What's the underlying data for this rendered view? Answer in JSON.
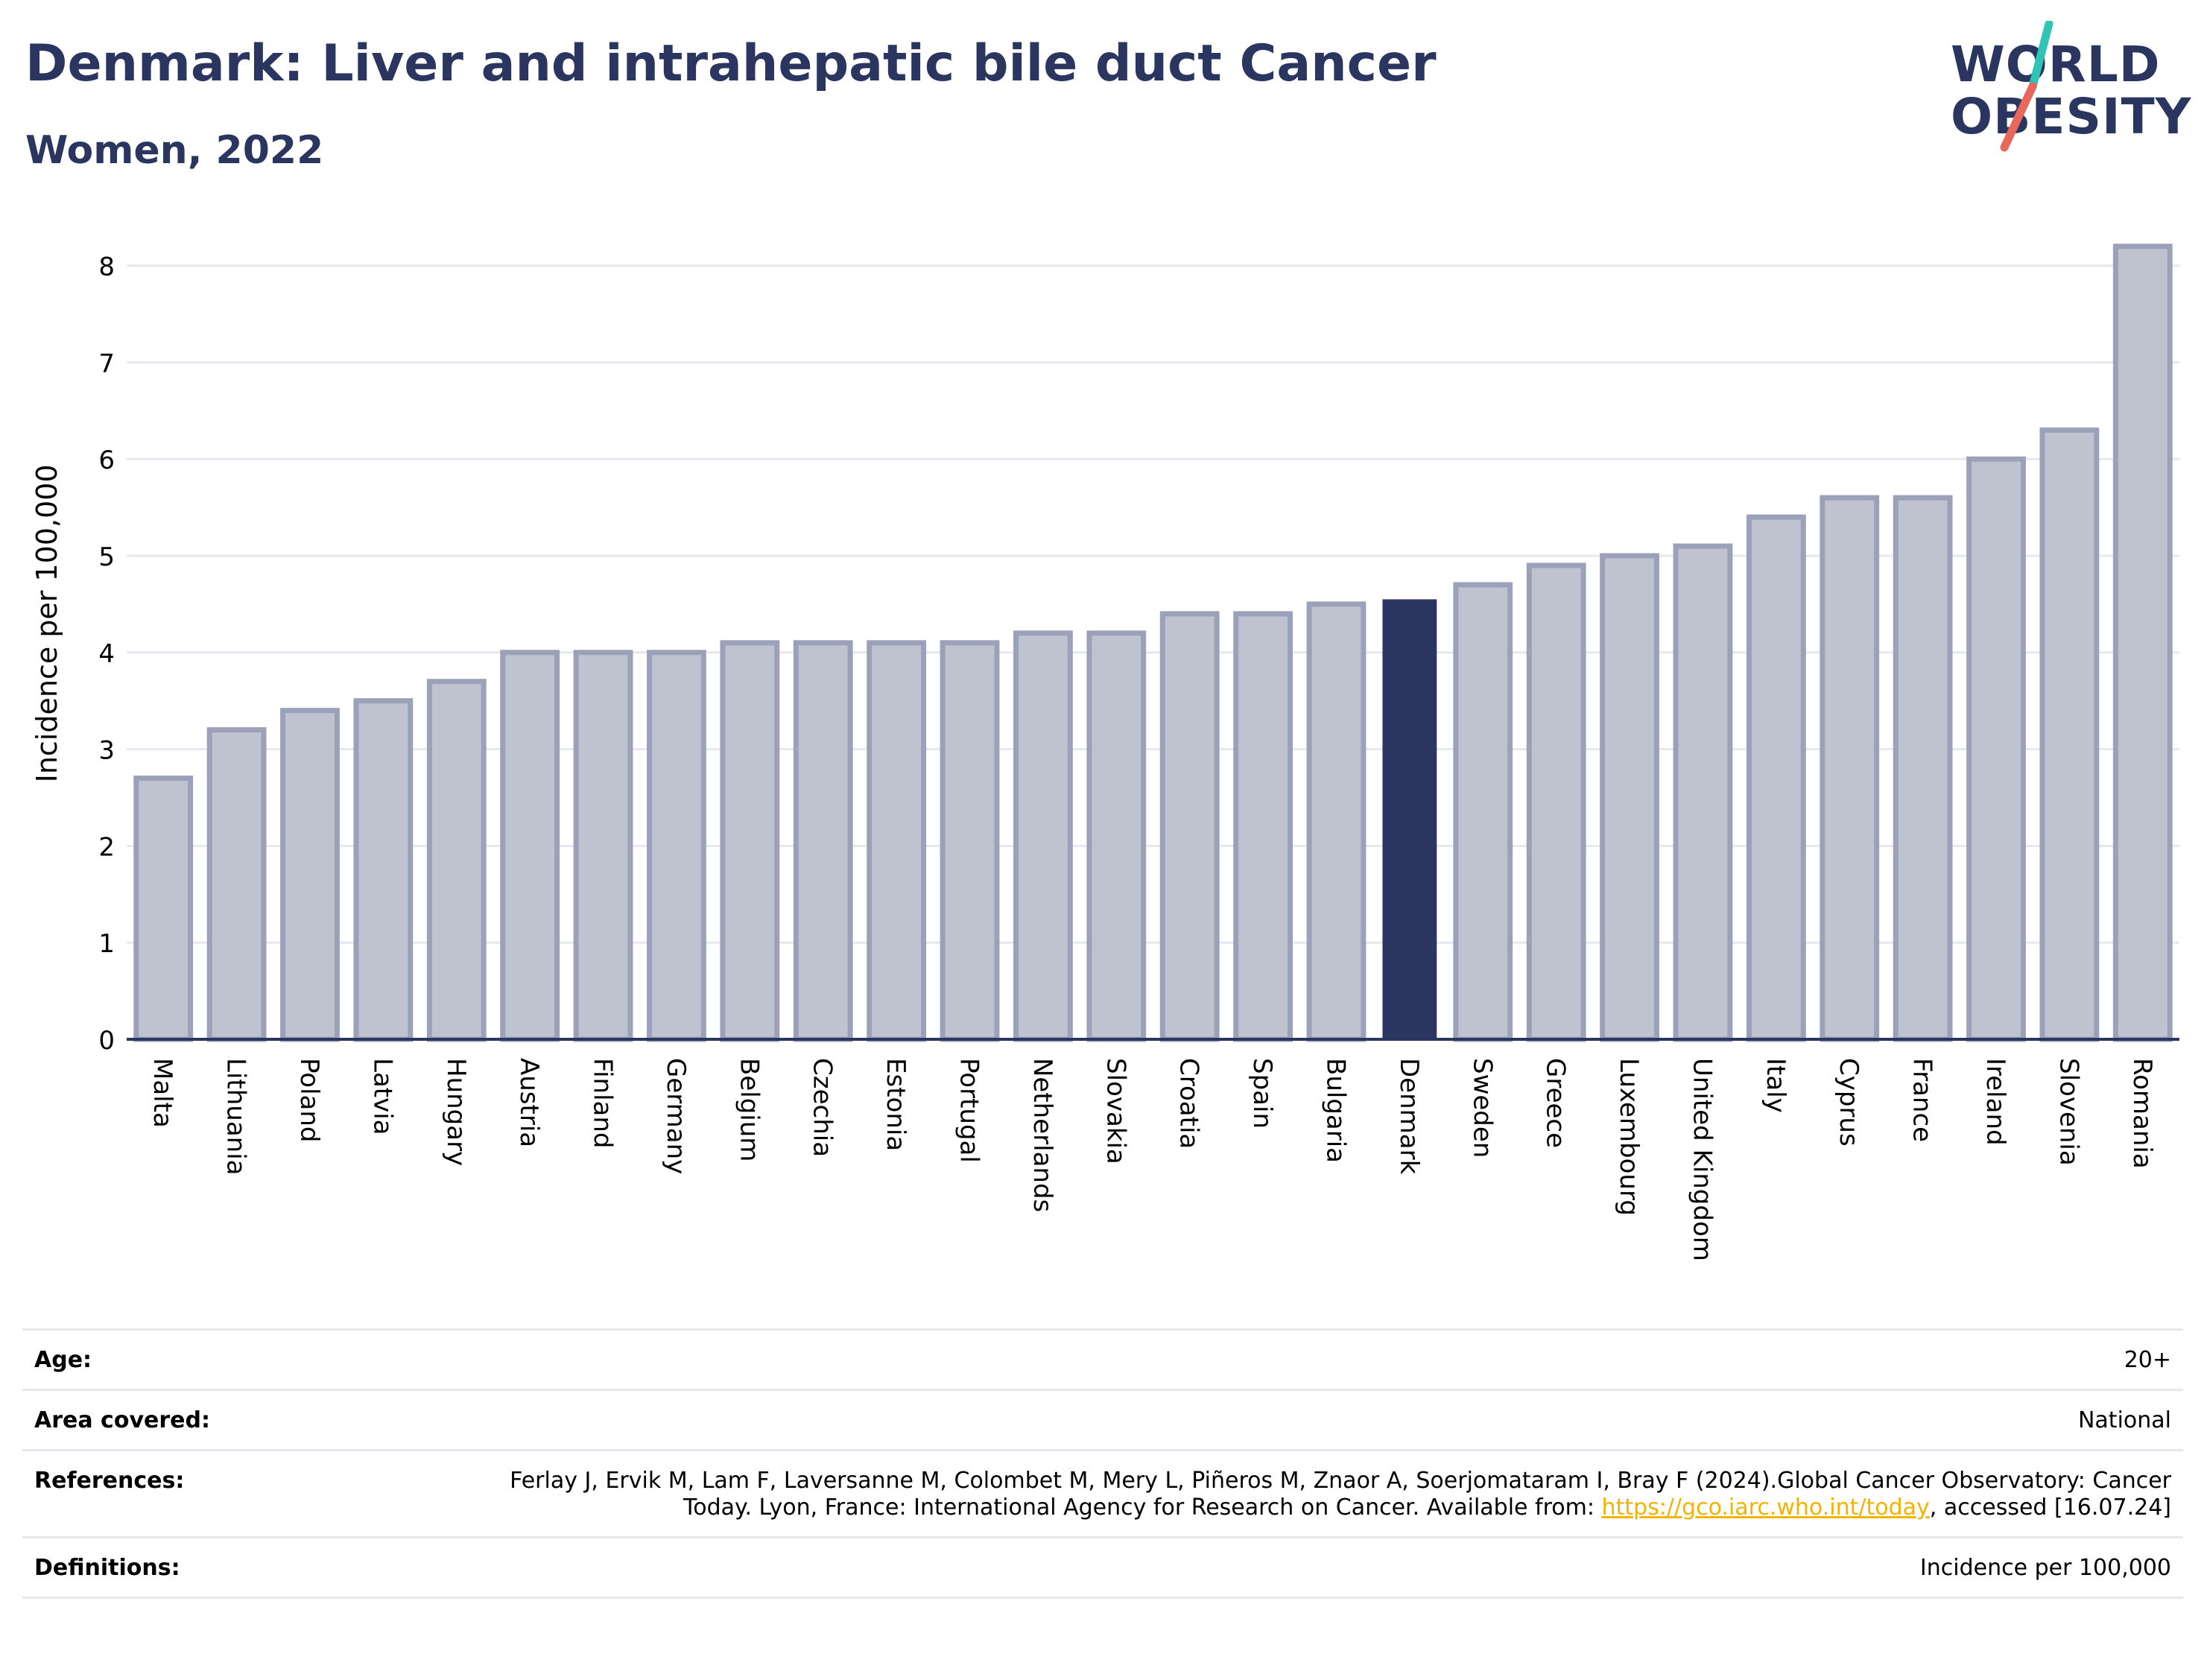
{
  "header": {
    "title": "Denmark: Liver and intrahepatic bile duct Cancer",
    "subtitle": "Women, 2022"
  },
  "logo": {
    "line1": "WORLD",
    "line2": "OBESITY",
    "slash_colors": [
      "#2ec4b6",
      "#e8675a"
    ]
  },
  "colors": {
    "highlight_bar": "#2b3660",
    "other_bar_fill": "#bfc2cf",
    "other_bar_stroke": "#9ba1b9",
    "title": "#2b3660",
    "link": "#f2b400"
  },
  "chart_data": {
    "type": "bar",
    "title": "Denmark: Liver and intrahepatic bile duct Cancer",
    "subtitle": "Women, 2022",
    "xlabel": "",
    "ylabel": "Incidence per 100,000",
    "ylim": [
      0,
      8.5
    ],
    "yticks": [
      0,
      1,
      2,
      3,
      4,
      5,
      6,
      7,
      8
    ],
    "grid": true,
    "highlight": "Denmark",
    "categories": [
      "Malta",
      "Lithuania",
      "Poland",
      "Latvia",
      "Hungary",
      "Austria",
      "Finland",
      "Germany",
      "Belgium",
      "Czechia",
      "Estonia",
      "Portugal",
      "Netherlands",
      "Slovakia",
      "Croatia",
      "Spain",
      "Bulgaria",
      "Denmark",
      "Sweden",
      "Greece",
      "Luxembourg",
      "United Kingdom",
      "Italy",
      "Cyprus",
      "France",
      "Ireland",
      "Slovenia",
      "Romania"
    ],
    "values": [
      2.7,
      3.2,
      3.4,
      3.5,
      3.7,
      4.0,
      4.0,
      4.0,
      4.1,
      4.1,
      4.1,
      4.1,
      4.2,
      4.2,
      4.4,
      4.4,
      4.5,
      4.55,
      4.7,
      4.9,
      5.0,
      5.1,
      5.4,
      5.6,
      5.6,
      6.0,
      6.3,
      8.2
    ]
  },
  "meta": {
    "age_label": "Age:",
    "age_value": "20+",
    "area_label": "Area covered:",
    "area_value": "National",
    "references_label": "References:",
    "references_text_1": "Ferlay J, Ervik M, Lam F, Laversanne M, Colombet M, Mery L, Piñeros M, Znaor A, Soerjomataram I, Bray F (2024).Global Cancer Observatory: Cancer Today. Lyon, France: International Agency for Research on Cancer. Available from: ",
    "references_link": "https://gco.iarc.who.int/today",
    "references_text_2": ", accessed [16.07.24]",
    "definitions_label": "Definitions:",
    "definitions_value": "Incidence per 100,000"
  }
}
